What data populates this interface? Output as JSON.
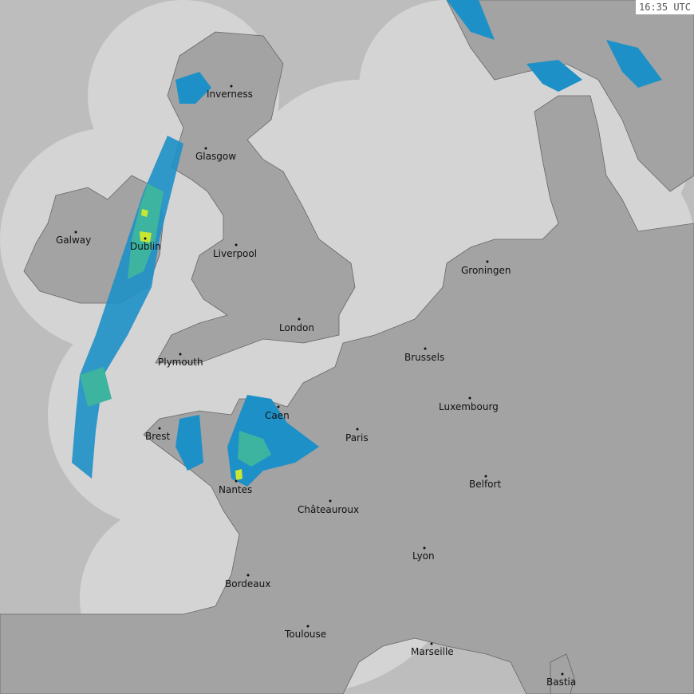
{
  "timestamp": "16:35 UTC",
  "colors": {
    "sea_outside_coverage": "#bdbdbd",
    "sea_in_coverage": "#d4d4d4",
    "land": "#a3a3a3",
    "land_outside_coverage": "#8f8f8f",
    "rain_light": "#1e90c8",
    "rain_moderate": "#3cb4a0",
    "rain_heavy": "#c8e632"
  },
  "cities": [
    {
      "name": "Inverness"
    },
    {
      "name": "Glasgow"
    },
    {
      "name": "Galway"
    },
    {
      "name": "Dublin"
    },
    {
      "name": "Liverpool"
    },
    {
      "name": "London"
    },
    {
      "name": "Plymouth"
    },
    {
      "name": "Groningen"
    },
    {
      "name": "Brussels"
    },
    {
      "name": "Luxembourg"
    },
    {
      "name": "Caen"
    },
    {
      "name": "Paris"
    },
    {
      "name": "Brest"
    },
    {
      "name": "Nantes"
    },
    {
      "name": "Belfort"
    },
    {
      "name": "Châteauroux"
    },
    {
      "name": "Lyon"
    },
    {
      "name": "Bordeaux"
    },
    {
      "name": "Toulouse"
    },
    {
      "name": "Marseille"
    },
    {
      "name": "Bastia"
    }
  ]
}
